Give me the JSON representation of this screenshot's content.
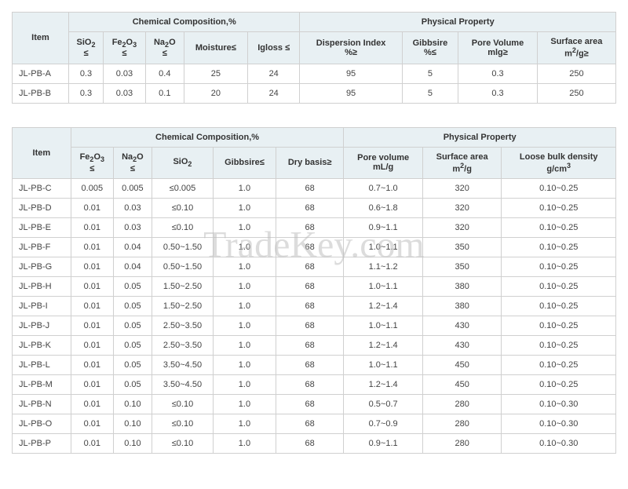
{
  "watermark": "TradeKey.com",
  "table1": {
    "group_headers": {
      "item": "Item",
      "chem": "Chemical Composition,%",
      "phys": "Physical Property"
    },
    "columns": [
      {
        "key": "sio2",
        "html": "SiO<sub>2</sub><br>≤"
      },
      {
        "key": "fe2o3",
        "html": "Fe<sub>2</sub>O<sub>3</sub><br>≤"
      },
      {
        "key": "na2o",
        "html": "Na<sub>2</sub>O<br>≤"
      },
      {
        "key": "moisture",
        "html": "Moisture≤"
      },
      {
        "key": "igloss",
        "html": "Igloss ≤"
      },
      {
        "key": "dispersion",
        "html": "Dispersion Index<br>%≥"
      },
      {
        "key": "gibbsire",
        "html": "Gibbsire<br>%≤"
      },
      {
        "key": "pore",
        "html": "Pore Volume<br>mlg≥"
      },
      {
        "key": "surface",
        "html": "Surface area<br>m<sup>2</sup>/g≥"
      }
    ],
    "rows": [
      {
        "item": "JL-PB-A",
        "sio2": "0.3",
        "fe2o3": "0.03",
        "na2o": "0.4",
        "moisture": "25",
        "igloss": "24",
        "dispersion": "95",
        "gibbsire": "5",
        "pore": "0.3",
        "surface": "250"
      },
      {
        "item": "JL-PB-B",
        "sio2": "0.3",
        "fe2o3": "0.03",
        "na2o": "0.1",
        "moisture": "20",
        "igloss": "24",
        "dispersion": "95",
        "gibbsire": "5",
        "pore": "0.3",
        "surface": "250"
      }
    ]
  },
  "table2": {
    "group_headers": {
      "item": "Item",
      "chem": "Chemical Composition,%",
      "phys": "Physical Property"
    },
    "columns": [
      {
        "key": "fe2o3",
        "html": "Fe<sub>2</sub>O<sub>3</sub><br>≤"
      },
      {
        "key": "na2o",
        "html": "Na<sub>2</sub>O<br>≤"
      },
      {
        "key": "sio2",
        "html": "SiO<sub>2</sub>"
      },
      {
        "key": "gibbsire",
        "html": "Gibbsire≤"
      },
      {
        "key": "drybasis",
        "html": "Dry basis≥"
      },
      {
        "key": "pore",
        "html": "Pore volume<br>mL/g"
      },
      {
        "key": "surface",
        "html": "Surface area<br>m<sup>2</sup>/g"
      },
      {
        "key": "bulk",
        "html": "Loose bulk density<br>g/cm<sup>3</sup>"
      }
    ],
    "rows": [
      {
        "item": "JL-PB-C",
        "fe2o3": "0.005",
        "na2o": "0.005",
        "sio2": "≤0.005",
        "gibbsire": "1.0",
        "drybasis": "68",
        "pore": "0.7~1.0",
        "surface": "320",
        "bulk": "0.10~0.25"
      },
      {
        "item": "JL-PB-D",
        "fe2o3": "0.01",
        "na2o": "0.03",
        "sio2": "≤0.10",
        "gibbsire": "1.0",
        "drybasis": "68",
        "pore": "0.6~1.8",
        "surface": "320",
        "bulk": "0.10~0.25"
      },
      {
        "item": "JL-PB-E",
        "fe2o3": "0.01",
        "na2o": "0.03",
        "sio2": "≤0.10",
        "gibbsire": "1.0",
        "drybasis": "68",
        "pore": "0.9~1.1",
        "surface": "320",
        "bulk": "0.10~0.25"
      },
      {
        "item": "JL-PB-F",
        "fe2o3": "0.01",
        "na2o": "0.04",
        "sio2": "0.50~1.50",
        "gibbsire": "1.0",
        "drybasis": "68",
        "pore": "1.0~1.1",
        "surface": "350",
        "bulk": "0.10~0.25"
      },
      {
        "item": "JL-PB-G",
        "fe2o3": "0.01",
        "na2o": "0.04",
        "sio2": "0.50~1.50",
        "gibbsire": "1.0",
        "drybasis": "68",
        "pore": "1.1~1.2",
        "surface": "350",
        "bulk": "0.10~0.25"
      },
      {
        "item": "JL-PB-H",
        "fe2o3": "0.01",
        "na2o": "0.05",
        "sio2": "1.50~2.50",
        "gibbsire": "1.0",
        "drybasis": "68",
        "pore": "1.0~1.1",
        "surface": "380",
        "bulk": "0.10~0.25"
      },
      {
        "item": "JL-PB-I",
        "fe2o3": "0.01",
        "na2o": "0.05",
        "sio2": "1.50~2.50",
        "gibbsire": "1.0",
        "drybasis": "68",
        "pore": "1.2~1.4",
        "surface": "380",
        "bulk": "0.10~0.25"
      },
      {
        "item": "JL-PB-J",
        "fe2o3": "0.01",
        "na2o": "0.05",
        "sio2": "2.50~3.50",
        "gibbsire": "1.0",
        "drybasis": "68",
        "pore": "1.0~1.1",
        "surface": "430",
        "bulk": "0.10~0.25"
      },
      {
        "item": "JL-PB-K",
        "fe2o3": "0.01",
        "na2o": "0.05",
        "sio2": "2.50~3.50",
        "gibbsire": "1.0",
        "drybasis": "68",
        "pore": "1.2~1.4",
        "surface": "430",
        "bulk": "0.10~0.25"
      },
      {
        "item": "JL-PB-L",
        "fe2o3": "0.01",
        "na2o": "0.05",
        "sio2": "3.50~4.50",
        "gibbsire": "1.0",
        "drybasis": "68",
        "pore": "1.0~1.1",
        "surface": "450",
        "bulk": "0.10~0.25"
      },
      {
        "item": "JL-PB-M",
        "fe2o3": "0.01",
        "na2o": "0.05",
        "sio2": "3.50~4.50",
        "gibbsire": "1.0",
        "drybasis": "68",
        "pore": "1.2~1.4",
        "surface": "450",
        "bulk": "0.10~0.25"
      },
      {
        "item": "JL-PB-N",
        "fe2o3": "0.01",
        "na2o": "0.10",
        "sio2": "≤0.10",
        "gibbsire": "1.0",
        "drybasis": "68",
        "pore": "0.5~0.7",
        "surface": "280",
        "bulk": "0.10~0.30"
      },
      {
        "item": "JL-PB-O",
        "fe2o3": "0.01",
        "na2o": "0.10",
        "sio2": "≤0.10",
        "gibbsire": "1.0",
        "drybasis": "68",
        "pore": "0.7~0.9",
        "surface": "280",
        "bulk": "0.10~0.30"
      },
      {
        "item": "JL-PB-P",
        "fe2o3": "0.01",
        "na2o": "0.10",
        "sio2": "≤0.10",
        "gibbsire": "1.0",
        "drybasis": "68",
        "pore": "0.9~1.1",
        "surface": "280",
        "bulk": "0.10~0.30"
      }
    ]
  },
  "styles": {
    "header_bg": "#e8f0f3",
    "border_color": "#d0d0d0",
    "text_color": "#333333",
    "font_size": 12
  }
}
